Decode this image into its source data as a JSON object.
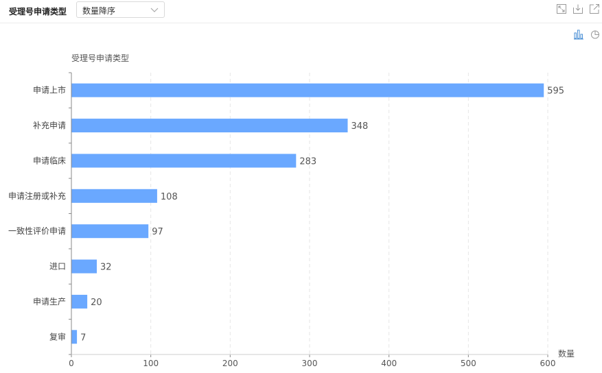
{
  "header": {
    "title": "受理号申请类型",
    "sort_select": {
      "value": "数量降序"
    }
  },
  "toolbar": {
    "icons": [
      "expand-icon",
      "download-icon",
      "open-external-icon"
    ]
  },
  "chart_switch": {
    "icons": [
      "bar-chart-icon",
      "pie-chart-icon"
    ],
    "active": "bar-chart-icon"
  },
  "colors": {
    "bar": "#6aa8ff",
    "active_icon": "#4a8fd6",
    "inactive_icon": "#999999"
  },
  "chart_data": {
    "type": "bar",
    "orientation": "horizontal",
    "ylabel": "受理号申请类型",
    "xlabel": "数量",
    "categories": [
      "申请上市",
      "补充申请",
      "申请临床",
      "申请注册或补充",
      "一致性评价申请",
      "进口",
      "申请生产",
      "复审"
    ],
    "values": [
      595,
      348,
      283,
      108,
      97,
      32,
      20,
      7
    ],
    "xlim": [
      0,
      600
    ],
    "xticks": [
      0,
      100,
      200,
      300,
      400,
      500,
      600
    ],
    "grid": true,
    "data_labels": true
  }
}
